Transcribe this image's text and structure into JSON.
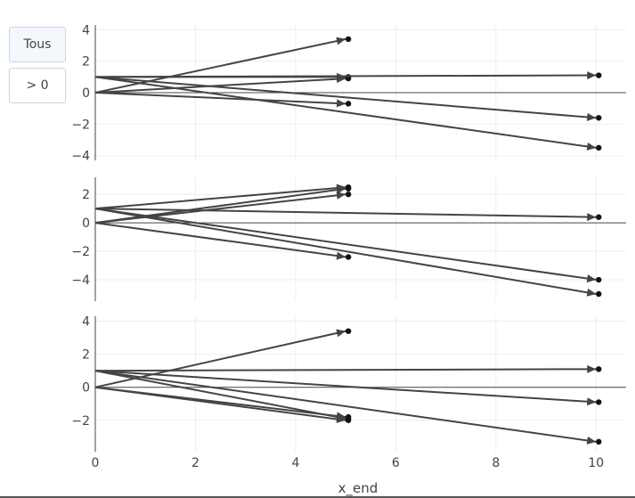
{
  "filter_buttons": [
    {
      "label": "Tous",
      "active": true
    },
    {
      "label": "> 0",
      "active": false
    }
  ],
  "colors": {
    "arrow": "#444444",
    "zero_line": "#444444",
    "grid": "#eeeeee",
    "axis": "#444444"
  },
  "chart_data": {
    "type": "quiver",
    "xlabel": "x_end",
    "x_range": [
      0,
      10.6
    ],
    "x_ticks": [
      0,
      2,
      4,
      6,
      8,
      10
    ],
    "panels": [
      {
        "y_range": [
          -4.3,
          4.3
        ],
        "y_ticks": [
          -4,
          -2,
          0,
          2,
          4
        ],
        "arrows": [
          {
            "x0": 0,
            "y0": 0,
            "x1": 5,
            "y1": 3.4
          },
          {
            "x0": 0,
            "y0": 0,
            "x1": 5,
            "y1": 0.9
          },
          {
            "x0": 0,
            "y0": 0,
            "x1": 5,
            "y1": -0.7
          },
          {
            "x0": 0,
            "y0": 1,
            "x1": 5,
            "y1": 1.0
          },
          {
            "x0": 0,
            "y0": 1,
            "x1": 10,
            "y1": 1.1
          },
          {
            "x0": 0,
            "y0": 1,
            "x1": 10,
            "y1": -1.6
          },
          {
            "x0": 0,
            "y0": 1,
            "x1": 10,
            "y1": -3.5
          }
        ]
      },
      {
        "y_range": [
          -5.5,
          3.2
        ],
        "y_ticks": [
          -4,
          -2,
          0,
          2
        ],
        "arrows": [
          {
            "x0": 0,
            "y0": 0,
            "x1": 5,
            "y1": 2.4
          },
          {
            "x0": 0,
            "y0": 0,
            "x1": 5,
            "y1": 2.0
          },
          {
            "x0": 0,
            "y0": 0,
            "x1": 5,
            "y1": -2.4
          },
          {
            "x0": 0,
            "y0": 1,
            "x1": 5,
            "y1": 2.5
          },
          {
            "x0": 0,
            "y0": 1,
            "x1": 10,
            "y1": 0.4
          },
          {
            "x0": 0,
            "y0": 1,
            "x1": 10,
            "y1": -4.0
          },
          {
            "x0": 0,
            "y0": 1,
            "x1": 10,
            "y1": -5.0
          }
        ]
      },
      {
        "y_range": [
          -3.9,
          4.3
        ],
        "y_ticks": [
          -2,
          0,
          2,
          4
        ],
        "arrows": [
          {
            "x0": 0,
            "y0": 0,
            "x1": 5,
            "y1": 3.4
          },
          {
            "x0": 0,
            "y0": 0,
            "x1": 5,
            "y1": -1.8
          },
          {
            "x0": 0,
            "y0": 0,
            "x1": 5,
            "y1": -2.0
          },
          {
            "x0": 0,
            "y0": 1,
            "x1": 5,
            "y1": -1.9
          },
          {
            "x0": 0,
            "y0": 1,
            "x1": 10,
            "y1": 1.1
          },
          {
            "x0": 0,
            "y0": 1,
            "x1": 10,
            "y1": -0.9
          },
          {
            "x0": 0,
            "y0": 1,
            "x1": 10,
            "y1": -3.3
          }
        ]
      }
    ]
  }
}
